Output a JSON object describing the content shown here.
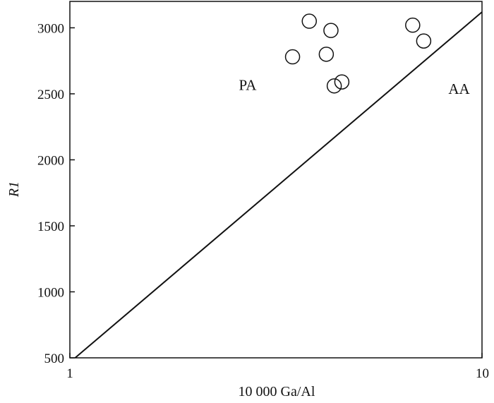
{
  "chart_data": {
    "type": "scatter",
    "xlabel": "10 000 Ga/Al",
    "ylabel": "R1",
    "xscale": "log",
    "xlim": [
      1,
      10
    ],
    "ylim": [
      500,
      3200
    ],
    "x_ticks": [
      1,
      10
    ],
    "x_tick_labels": [
      "1",
      "10"
    ],
    "y_ticks": [
      500,
      1000,
      1500,
      2000,
      2500,
      3000
    ],
    "y_tick_labels": [
      "500",
      "1000",
      "1500",
      "2000",
      "2500",
      "3000"
    ],
    "grid": false,
    "legend": null,
    "marker": "open-circle",
    "points": [
      {
        "x": 3.47,
        "y": 2780
      },
      {
        "x": 3.81,
        "y": 3050
      },
      {
        "x": 4.19,
        "y": 2800
      },
      {
        "x": 4.3,
        "y": 2980
      },
      {
        "x": 4.38,
        "y": 2560
      },
      {
        "x": 4.57,
        "y": 2590
      },
      {
        "x": 6.79,
        "y": 3020
      },
      {
        "x": 7.22,
        "y": 2900
      }
    ],
    "boundary_line": {
      "points": [
        [
          1.03,
          500
        ],
        [
          10,
          3120
        ]
      ]
    },
    "region_labels": [
      {
        "text": "PA",
        "x": 2.7,
        "y": 2530
      },
      {
        "text": "AA",
        "x": 8.8,
        "y": 2500
      }
    ]
  }
}
